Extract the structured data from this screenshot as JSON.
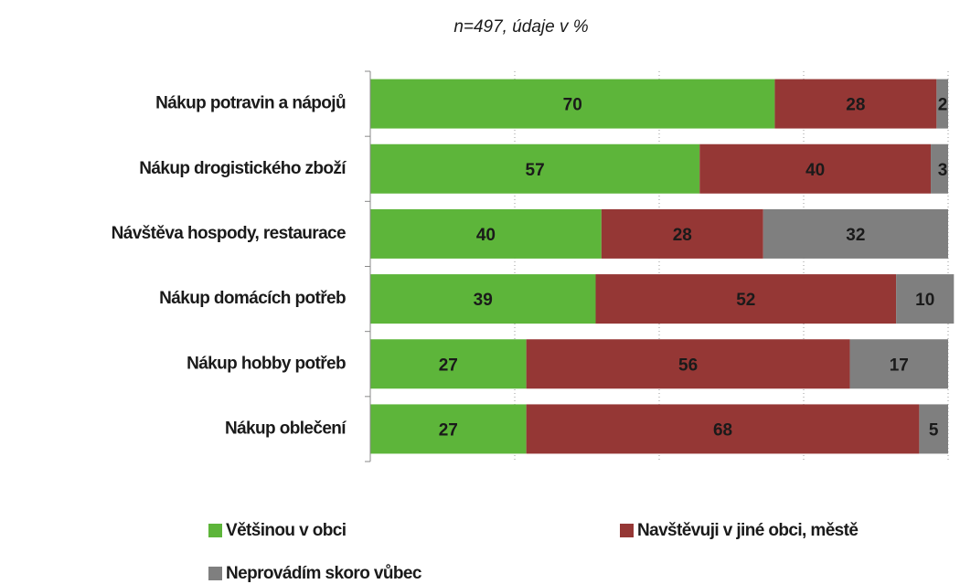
{
  "chart_data": {
    "type": "stacked_bar_horizontal",
    "subtitle": "n=497, údaje v %",
    "categories": [
      "Nákup potravin a nápojů",
      "Nákup drogistického zboží",
      "Návštěva hospody, restaurace",
      "Nákup domácích potřeb",
      "Nákup hobby potřeb",
      "Nákup oblečení"
    ],
    "series": [
      {
        "name": "Většinou v obci",
        "color": "#5db53a",
        "values": [
          70,
          57,
          40,
          39,
          27,
          27
        ]
      },
      {
        "name": "Navštěvuji v jiné obci, městě",
        "color": "#953735",
        "values": [
          28,
          40,
          28,
          52,
          56,
          68
        ]
      },
      {
        "name": "Neprovádím skoro vůbec",
        "color": "#7f7f7f",
        "values": [
          2,
          3,
          32,
          10,
          17,
          5
        ]
      }
    ],
    "xlim": [
      0,
      100
    ],
    "xticks": [
      0,
      25,
      50,
      75,
      100
    ],
    "grid": true
  }
}
